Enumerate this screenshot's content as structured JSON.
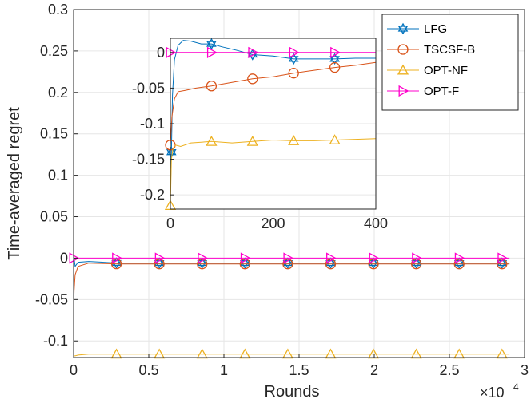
{
  "chart_data": [
    {
      "type": "line",
      "xlabel": "Rounds",
      "ylabel": "Time-averaged regret",
      "x_exponent_label": "×10",
      "x_exponent_power": "4",
      "xlim": [
        0,
        3
      ],
      "ylim": [
        -0.12,
        0.3
      ],
      "xticks": [
        "0",
        "0.5",
        "1",
        "1.5",
        "2",
        "2.5",
        "3"
      ],
      "yticks": [
        "-0.1",
        "-0.05",
        "0",
        "0.05",
        "0.1",
        "0.15",
        "0.2",
        "0.25",
        "0.3"
      ],
      "grid": true,
      "legend_position": "top-right",
      "series": [
        {
          "name": "LFG",
          "color": "#0072BD",
          "marker": "hexagram",
          "x": [
            0,
            0.003,
            0.01,
            0.03,
            0.1,
            0.3,
            0.6,
            1.0,
            1.5,
            2.0,
            2.5,
            2.9
          ],
          "y": [
            0.025,
            0.0,
            -0.01,
            -0.005,
            -0.004,
            -0.006,
            -0.006,
            -0.006,
            -0.006,
            -0.006,
            -0.006,
            -0.006
          ]
        },
        {
          "name": "TSCSF-B",
          "color": "#D95319",
          "marker": "circle",
          "x": [
            0,
            0.003,
            0.01,
            0.03,
            0.1,
            0.3,
            0.6,
            1.0,
            1.5,
            2.0,
            2.5,
            2.9
          ],
          "y": [
            -0.06,
            -0.04,
            -0.02,
            -0.01,
            -0.006,
            -0.007,
            -0.007,
            -0.007,
            -0.007,
            -0.007,
            -0.007,
            -0.007
          ]
        },
        {
          "name": "OPT-NF",
          "color": "#EDB120",
          "marker": "triangle-up",
          "x": [
            0,
            0.003,
            0.01,
            0.03,
            0.1,
            0.3,
            0.6,
            1.0,
            1.5,
            2.0,
            2.5,
            2.9
          ],
          "y": [
            -0.115,
            -0.118,
            -0.118,
            -0.117,
            -0.116,
            -0.116,
            -0.116,
            -0.116,
            -0.116,
            -0.116,
            -0.116,
            -0.116
          ]
        },
        {
          "name": "OPT-F",
          "color": "#FF00CC",
          "marker": "triangle-right",
          "x": [
            0,
            2.9
          ],
          "y": [
            0,
            0
          ]
        }
      ]
    },
    {
      "type": "line",
      "role": "inset",
      "xlim": [
        0,
        400
      ],
      "ylim": [
        -0.22,
        0.02
      ],
      "xticks": [
        "0",
        "200",
        "400"
      ],
      "yticks": [
        "-0.2",
        "-0.15",
        "-0.1",
        "-0.05",
        "0"
      ],
      "grid": true,
      "series": [
        {
          "name": "LFG",
          "color": "#0072BD",
          "x": [
            0,
            2,
            4,
            8,
            15,
            25,
            40,
            60,
            80,
            100,
            130,
            160,
            200,
            240,
            280,
            320,
            360,
            400
          ],
          "y": [
            -0.2,
            -0.14,
            -0.06,
            -0.01,
            0.01,
            0.017,
            0.016,
            0.012,
            0.012,
            0.008,
            0.003,
            -0.003,
            -0.005,
            -0.009,
            -0.009,
            -0.009,
            -0.008,
            -0.008
          ]
        },
        {
          "name": "TSCSF-B",
          "color": "#D95319",
          "x": [
            0,
            3,
            8,
            15,
            30,
            50,
            80,
            120,
            160,
            200,
            240,
            280,
            320,
            360,
            400
          ],
          "y": [
            -0.13,
            -0.09,
            -0.065,
            -0.055,
            -0.053,
            -0.05,
            -0.047,
            -0.042,
            -0.037,
            -0.034,
            -0.029,
            -0.025,
            -0.021,
            -0.018,
            -0.014
          ]
        },
        {
          "name": "OPT-NF",
          "color": "#EDB120",
          "x": [
            0,
            2,
            5,
            10,
            20,
            40,
            80,
            120,
            160,
            200,
            240,
            280,
            320,
            360,
            400
          ],
          "y": [
            -0.215,
            -0.15,
            -0.135,
            -0.13,
            -0.132,
            -0.127,
            -0.125,
            -0.127,
            -0.125,
            -0.123,
            -0.124,
            -0.124,
            -0.123,
            -0.122,
            -0.121
          ]
        },
        {
          "name": "OPT-F",
          "color": "#FF00CC",
          "x": [
            0,
            400
          ],
          "y": [
            0,
            0
          ]
        }
      ]
    }
  ]
}
